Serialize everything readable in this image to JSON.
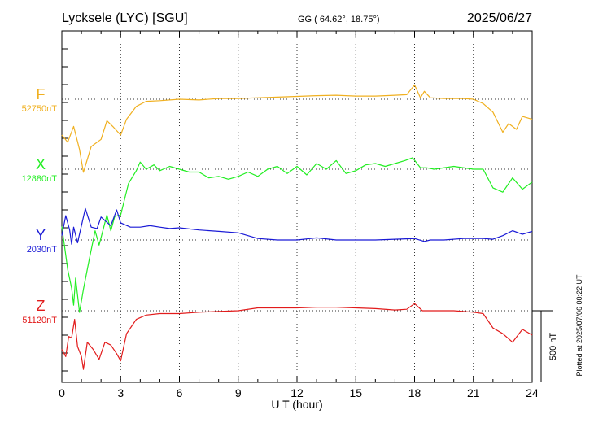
{
  "header": {
    "station": "Lycksele (LYC)  [SGU]",
    "coords": "GG ( 64.62°,  18.75°)",
    "date": "2025/06/27"
  },
  "footer": {
    "plotted": "Plotted at 2025/07/06 00:22 UT"
  },
  "chart_data": {
    "type": "line",
    "title": "Lycksele (LYC)  [SGU]",
    "xlabel": "U T (hour)",
    "ylabel": "",
    "xlim": [
      0,
      24
    ],
    "x_ticks": [
      0,
      3,
      6,
      9,
      12,
      15,
      18,
      21,
      24
    ],
    "x_tick_labels": [
      "0",
      "3",
      "6",
      "9",
      "12",
      "15",
      "18",
      "21",
      "24"
    ],
    "scale_bar": {
      "label": "500 nT",
      "value": 500
    },
    "grid": true,
    "colors": {
      "F": "#f0b020",
      "X": "#22ee22",
      "Y": "#1a1ad6",
      "Z": "#e21b1b"
    },
    "series": [
      {
        "name": "F",
        "baseline_label": "52750nT",
        "baseline": 52750,
        "x": [
          0,
          0.3,
          0.6,
          0.9,
          1.1,
          1.5,
          2.0,
          2.3,
          2.6,
          3.0,
          3.3,
          3.8,
          4.3,
          5.0,
          6.0,
          7.0,
          8.0,
          9.0,
          10.0,
          11.0,
          12.0,
          13.0,
          14.0,
          15.0,
          16.0,
          17.0,
          17.6,
          18.0,
          18.3,
          18.5,
          18.8,
          19.5,
          20.5,
          21.0,
          21.5,
          22.0,
          22.5,
          22.8,
          23.2,
          23.5,
          24.0
        ],
        "values": [
          52500,
          52450,
          52560,
          52400,
          52240,
          52420,
          52470,
          52600,
          52560,
          52500,
          52610,
          52700,
          52735,
          52740,
          52750,
          52745,
          52755,
          52755,
          52760,
          52765,
          52770,
          52775,
          52778,
          52772,
          52772,
          52778,
          52782,
          52850,
          52760,
          52805,
          52760,
          52755,
          52755,
          52750,
          52720,
          52660,
          52520,
          52580,
          52540,
          52630,
          52610
        ]
      },
      {
        "name": "X",
        "baseline_label": "12880nT",
        "baseline": 12880,
        "x": [
          0,
          0.3,
          0.5,
          0.6,
          0.7,
          0.9,
          1.1,
          1.4,
          1.7,
          1.9,
          2.3,
          2.5,
          2.7,
          3.0,
          3.4,
          3.8,
          4.0,
          4.3,
          4.7,
          5.0,
          5.5,
          6.0,
          6.5,
          7.0,
          7.5,
          8.0,
          8.5,
          9.0,
          9.5,
          10.0,
          10.5,
          11.0,
          11.5,
          12.0,
          12.5,
          13.0,
          13.5,
          14.0,
          14.5,
          15.0,
          15.5,
          16.0,
          16.5,
          17.0,
          17.5,
          17.9,
          18.3,
          18.6,
          19.0,
          20.0,
          21.0,
          21.5,
          22.0,
          22.5,
          23.0,
          23.5,
          24.0
        ],
        "values": [
          12480,
          12180,
          12050,
          11930,
          12120,
          11880,
          12040,
          12250,
          12450,
          12350,
          12560,
          12450,
          12550,
          12560,
          12780,
          12870,
          12930,
          12880,
          12910,
          12870,
          12900,
          12880,
          12860,
          12860,
          12820,
          12830,
          12810,
          12830,
          12860,
          12830,
          12880,
          12900,
          12850,
          12900,
          12840,
          12920,
          12880,
          12940,
          12850,
          12870,
          12910,
          12920,
          12900,
          12920,
          12940,
          12960,
          12890,
          12890,
          12880,
          12900,
          12880,
          12880,
          12750,
          12720,
          12820,
          12740,
          12790
        ]
      },
      {
        "name": "Y",
        "baseline_label": "2030nT",
        "baseline": 2030,
        "x": [
          0,
          0.2,
          0.4,
          0.5,
          0.6,
          0.8,
          1.0,
          1.2,
          1.5,
          1.8,
          2.0,
          2.5,
          2.8,
          3.0,
          3.5,
          4.0,
          4.5,
          5.0,
          5.5,
          6.0,
          7.0,
          8.0,
          9.0,
          9.5,
          10.0,
          11.0,
          12.0,
          13.0,
          14.0,
          15.0,
          16.0,
          17.0,
          18.0,
          18.5,
          18.8,
          19.5,
          20.5,
          21.5,
          22.0,
          22.5,
          23.0,
          23.5,
          24.0
        ],
        "values": [
          2060,
          2200,
          2100,
          2000,
          2120,
          2010,
          2130,
          2250,
          2120,
          2110,
          2190,
          2130,
          2240,
          2150,
          2120,
          2120,
          2130,
          2120,
          2110,
          2115,
          2100,
          2090,
          2080,
          2060,
          2040,
          2030,
          2030,
          2045,
          2030,
          2030,
          2030,
          2035,
          2040,
          2020,
          2030,
          2030,
          2040,
          2040,
          2035,
          2060,
          2095,
          2070,
          2090
        ]
      },
      {
        "name": "Z",
        "baseline_label": "51120nT",
        "baseline": 51120,
        "x": [
          0,
          0.2,
          0.35,
          0.5,
          0.65,
          0.8,
          1.0,
          1.1,
          1.3,
          1.6,
          1.9,
          2.2,
          2.5,
          2.8,
          3.0,
          3.3,
          3.8,
          4.3,
          5.0,
          6.0,
          7.0,
          8.0,
          9.0,
          10.0,
          11.0,
          12.0,
          13.0,
          14.0,
          15.0,
          16.0,
          17.0,
          17.6,
          18.0,
          18.4,
          19.0,
          20.0,
          21.0,
          21.5,
          22.0,
          22.5,
          23.0,
          23.5,
          24.0
        ],
        "values": [
          50850,
          50800,
          50940,
          50930,
          51060,
          50870,
          50800,
          50710,
          50900,
          50850,
          50780,
          50900,
          50880,
          50820,
          50770,
          50960,
          51060,
          51090,
          51100,
          51100,
          51110,
          51115,
          51120,
          51140,
          51140,
          51140,
          51145,
          51145,
          51140,
          51135,
          51125,
          51130,
          51170,
          51120,
          51120,
          51120,
          51110,
          51100,
          51000,
          50960,
          50900,
          50990,
          50950
        ]
      }
    ]
  }
}
